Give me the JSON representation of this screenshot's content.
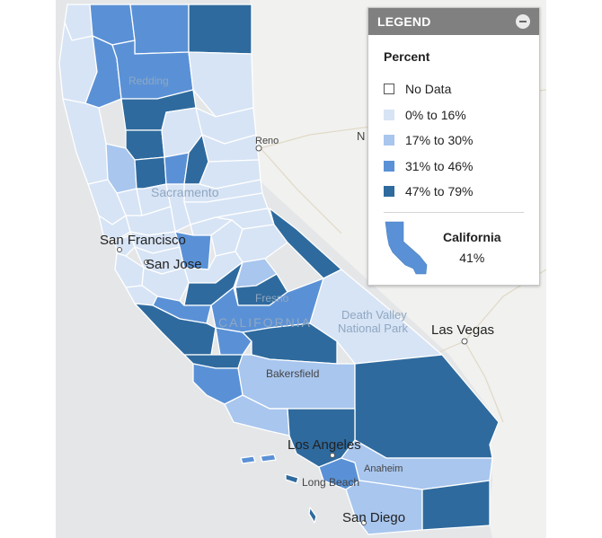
{
  "map": {
    "labels": {
      "reno": "Reno",
      "redding": "Redding",
      "sacramento": "Sacramento",
      "san_francisco": "San Francisco",
      "san_jose": "San Jose",
      "fresno": "Fresno",
      "california": "CALIFORNIA",
      "death_valley": "Death Valley",
      "national_park": "National Park",
      "las_vegas": "Las Vegas",
      "bakersfield": "Bakersfield",
      "los_angeles": "Los Angeles",
      "anaheim": "Anaheim",
      "long_beach": "Long Beach",
      "san_diego": "San Diego",
      "edge_letter": "N"
    },
    "colors": {
      "ocean": "#e6e7e9",
      "land": "#f1f1ef",
      "no_data": "#ffffff",
      "bin1": "#d7e4f5",
      "bin2": "#a8c6ee",
      "bin3": "#5a91d6",
      "bin4": "#2e6a9e",
      "border": "#ffffff"
    }
  },
  "legend": {
    "title": "LEGEND",
    "subtitle": "Percent",
    "items": [
      {
        "label": "No Data",
        "color": "#ffffff"
      },
      {
        "label": "0% to 16%",
        "color": "#d7e4f5"
      },
      {
        "label": "17% to 30%",
        "color": "#a8c6ee"
      },
      {
        "label": "31% to 46%",
        "color": "#5a91d6"
      },
      {
        "label": "47% to 79%",
        "color": "#2e6a9e"
      }
    ],
    "state": {
      "name": "California",
      "value": "41%",
      "color": "#5a91d6"
    }
  }
}
